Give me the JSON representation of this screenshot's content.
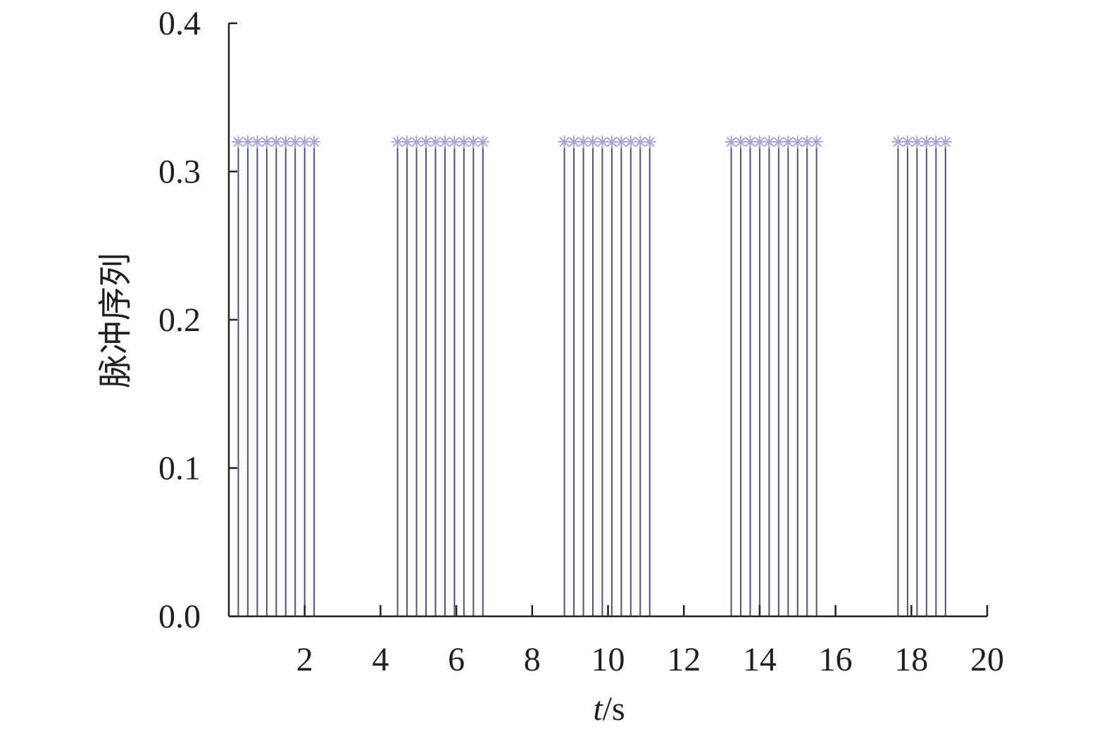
{
  "chart_data": {
    "type": "stem",
    "xlabel_var": "t",
    "xlabel_unit": "/s",
    "ylabel": "脉冲序列",
    "xlim": [
      0,
      20
    ],
    "ylim": [
      0,
      0.4
    ],
    "xticks": [
      2,
      4,
      6,
      8,
      10,
      12,
      14,
      16,
      18,
      20
    ],
    "yticks": [
      "0.0",
      "0.1",
      "0.2",
      "0.3",
      "0.4"
    ],
    "grid": false,
    "marker": "asterisk",
    "colors": {
      "stem": "#4a4f8f",
      "marker": "#a3a8d8",
      "axis": "#231f20"
    },
    "series": [
      {
        "x": [
          0.25,
          0.5,
          0.75,
          1.0,
          1.25,
          1.5,
          1.75,
          2.0,
          2.25,
          4.45,
          4.7,
          4.95,
          5.2,
          5.45,
          5.7,
          5.95,
          6.2,
          6.45,
          6.7,
          8.85,
          9.1,
          9.35,
          9.6,
          9.85,
          10.1,
          10.35,
          10.6,
          10.85,
          11.1,
          13.25,
          13.5,
          13.75,
          14.0,
          14.25,
          14.5,
          14.75,
          15.0,
          15.25,
          15.5,
          17.65,
          17.9,
          18.15,
          18.4,
          18.65,
          18.9
        ],
        "y": [
          0.32,
          0.32,
          0.32,
          0.32,
          0.32,
          0.32,
          0.32,
          0.32,
          0.32,
          0.32,
          0.32,
          0.32,
          0.32,
          0.32,
          0.32,
          0.32,
          0.32,
          0.32,
          0.32,
          0.32,
          0.32,
          0.32,
          0.32,
          0.32,
          0.32,
          0.32,
          0.32,
          0.32,
          0.32,
          0.32,
          0.32,
          0.32,
          0.32,
          0.32,
          0.32,
          0.32,
          0.32,
          0.32,
          0.32,
          0.32,
          0.32,
          0.32,
          0.32,
          0.32,
          0.32
        ]
      }
    ]
  }
}
